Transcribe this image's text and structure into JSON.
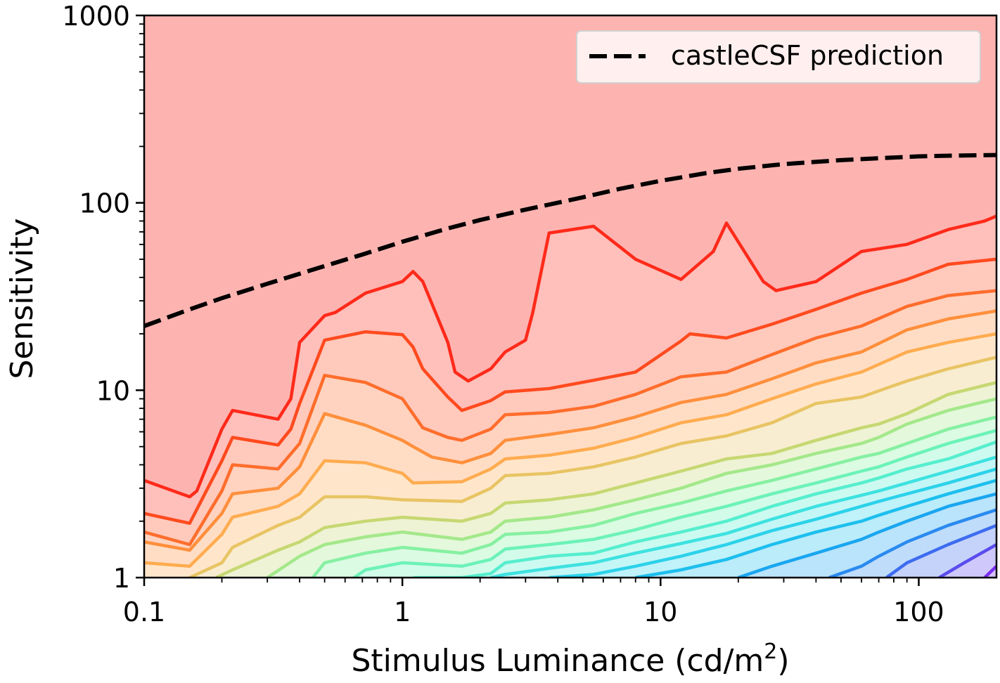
{
  "chart_data": {
    "type": "line",
    "xlabel": "Stimulus Luminance (cd/m",
    "xlabel_sup": "2",
    "xlabel_close": ")",
    "ylabel": "Sensitivity",
    "xscale": "log",
    "yscale": "log",
    "xlim": [
      0.1,
      200
    ],
    "ylim": [
      1,
      1000
    ],
    "x_ticks": [
      {
        "value": 0.1,
        "label": "0.1"
      },
      {
        "value": 1,
        "label": "1"
      },
      {
        "value": 10,
        "label": "10"
      },
      {
        "value": 100,
        "label": "100"
      }
    ],
    "y_ticks": [
      {
        "value": 1,
        "label": "1"
      },
      {
        "value": 10,
        "label": "10"
      },
      {
        "value": 100,
        "label": "100"
      },
      {
        "value": 1000,
        "label": "1000"
      }
    ],
    "legend": {
      "position": "top-right",
      "entries": [
        {
          "name": "castleCSF prediction",
          "style": "dashed",
          "color": "#000000"
        }
      ]
    },
    "prediction": {
      "name": "castleCSF prediction",
      "color": "#000000",
      "x": [
        0.1,
        0.15,
        0.2,
        0.3,
        0.5,
        0.7,
        1,
        1.5,
        2,
        3,
        5,
        7,
        10,
        15,
        20,
        30,
        50,
        70,
        100,
        150,
        200
      ],
      "y": [
        22,
        27,
        31,
        37,
        46,
        53,
        62,
        73,
        81,
        92,
        107,
        119,
        131,
        144,
        152,
        161,
        169,
        173,
        177,
        179,
        180
      ]
    },
    "contours": [
      {
        "color": "#ff2a1a",
        "x": [
          0.1,
          0.15,
          0.16,
          0.2,
          0.22,
          0.33,
          0.37,
          0.4,
          0.5,
          0.55,
          0.72,
          1,
          1.1,
          1.2,
          1.5,
          1.6,
          1.8,
          2.2,
          2.5,
          3,
          3.2,
          3.7,
          5.5,
          8,
          12,
          16,
          18,
          25,
          28,
          40,
          60,
          90,
          130,
          180,
          200
        ],
        "y": [
          3.3,
          2.7,
          2.9,
          6.2,
          7.8,
          7,
          9,
          18,
          25,
          26,
          33,
          38,
          43,
          38,
          18,
          12.5,
          11.2,
          13,
          16,
          18.5,
          26,
          69,
          75,
          50,
          39,
          55,
          78,
          38,
          34,
          38,
          55,
          60,
          72,
          80,
          85
        ]
      },
      {
        "color": "#ff4a1e",
        "x": [
          0.1,
          0.15,
          0.2,
          0.22,
          0.33,
          0.37,
          0.4,
          0.5,
          0.72,
          1,
          1.1,
          1.2,
          1.5,
          1.7,
          2.2,
          2.5,
          3.7,
          5.5,
          8,
          12,
          13,
          18,
          27,
          40,
          60,
          90,
          130,
          200
        ],
        "y": [
          2.2,
          1.95,
          4.2,
          5.6,
          5.1,
          6.2,
          8.5,
          18.5,
          20.5,
          19.8,
          17,
          13,
          9.2,
          7.8,
          8.8,
          9.8,
          10.2,
          11.3,
          12.5,
          18.3,
          20,
          19,
          22.5,
          27,
          33,
          39,
          47,
          50
        ]
      },
      {
        "color": "#ff6d2c",
        "x": [
          0.1,
          0.15,
          0.2,
          0.22,
          0.33,
          0.4,
          0.5,
          0.72,
          1,
          1.2,
          1.5,
          1.7,
          2.2,
          2.5,
          3.7,
          5.5,
          8,
          12,
          18,
          27,
          40,
          60,
          90,
          130,
          200
        ],
        "y": [
          1.75,
          1.5,
          2.9,
          4,
          3.8,
          5.2,
          12,
          11,
          9,
          6.3,
          5.6,
          5.4,
          6.2,
          7.4,
          7.6,
          8.2,
          9.5,
          11.8,
          12.5,
          15.5,
          19,
          22,
          28,
          32,
          34
        ]
      },
      {
        "color": "#ff8f3c",
        "x": [
          0.1,
          0.15,
          0.2,
          0.22,
          0.33,
          0.4,
          0.5,
          0.72,
          1,
          1.1,
          1.3,
          1.7,
          2.2,
          2.5,
          3.7,
          5.5,
          8,
          12,
          18,
          27,
          40,
          60,
          90,
          130,
          200
        ],
        "y": [
          1.55,
          1.4,
          2.2,
          2.8,
          3,
          3.9,
          7.5,
          6.5,
          5.4,
          5,
          4.4,
          4.1,
          4.6,
          5.4,
          5.8,
          6.3,
          7.2,
          8.6,
          9.5,
          11.5,
          14,
          16,
          21,
          24,
          26.5
        ]
      },
      {
        "color": "#ffac50",
        "x": [
          0.1,
          0.15,
          0.2,
          0.22,
          0.33,
          0.4,
          0.5,
          0.72,
          1,
          1.1,
          1.7,
          2.2,
          2.5,
          3.7,
          5.5,
          8,
          12,
          18,
          27,
          40,
          60,
          90,
          130,
          200
        ],
        "y": [
          1.2,
          1.15,
          1.7,
          2.1,
          2.4,
          2.8,
          4.2,
          4.1,
          3.6,
          3.2,
          3.25,
          3.8,
          4.3,
          4.5,
          4.9,
          5.6,
          6.7,
          7.4,
          9,
          10.8,
          12.5,
          16,
          18,
          20
        ]
      },
      {
        "color": "#e8c464",
        "x": [
          0.15,
          0.2,
          0.22,
          0.33,
          0.4,
          0.5,
          0.72,
          1,
          1.7,
          2.2,
          2.5,
          3.7,
          5.5,
          8,
          12,
          18,
          27,
          40,
          60,
          90,
          130,
          200
        ],
        "y": [
          1.0,
          1.2,
          1.45,
          1.9,
          2.1,
          2.7,
          2.7,
          2.6,
          2.55,
          3,
          3.5,
          3.6,
          3.9,
          4.4,
          5.2,
          5.7,
          6.7,
          8.5,
          9.2,
          11.2,
          13,
          15
        ]
      },
      {
        "color": "#c6d872",
        "x": [
          0.19,
          0.22,
          0.33,
          0.4,
          0.5,
          0.72,
          1,
          1.7,
          2.2,
          2.5,
          3.7,
          5.5,
          8,
          12,
          18,
          27,
          40,
          60,
          70,
          90,
          130,
          200
        ],
        "y": [
          1.0,
          1.1,
          1.4,
          1.55,
          1.85,
          2,
          2.1,
          2,
          2.2,
          2.5,
          2.6,
          2.8,
          3.2,
          3.7,
          4.3,
          4.6,
          5.4,
          6.3,
          6.6,
          7.5,
          9.5,
          11
        ]
      },
      {
        "color": "#a4e88a",
        "x": [
          0.3,
          0.4,
          0.5,
          0.72,
          1,
          1.7,
          2.2,
          2.5,
          3.7,
          5.5,
          8,
          12,
          18,
          27,
          40,
          60,
          70,
          90,
          130,
          200
        ],
        "y": [
          1.0,
          1.3,
          1.5,
          1.65,
          1.75,
          1.6,
          1.75,
          2,
          2.1,
          2.3,
          2.6,
          3,
          3.6,
          4,
          4.6,
          5.2,
          5.6,
          6.6,
          7.8,
          9
        ]
      },
      {
        "color": "#86f0a2",
        "x": [
          0.45,
          0.5,
          0.72,
          1,
          1.7,
          2.2,
          2.5,
          3.7,
          5.5,
          8,
          12,
          18,
          27,
          40,
          60,
          70,
          90,
          130,
          200
        ],
        "y": [
          1.0,
          1.2,
          1.35,
          1.45,
          1.35,
          1.5,
          1.7,
          1.75,
          1.9,
          2.2,
          2.5,
          2.9,
          3.3,
          3.8,
          4.4,
          4.6,
          5.2,
          6.2,
          7.2
        ]
      },
      {
        "color": "#6cf2b8",
        "x": [
          0.65,
          0.72,
          1,
          1.7,
          2.2,
          2.5,
          3.7,
          5.5,
          8,
          12,
          18,
          27,
          40,
          60,
          70,
          90,
          130,
          200
        ],
        "y": [
          1.0,
          1.1,
          1.2,
          1.15,
          1.25,
          1.42,
          1.5,
          1.6,
          1.8,
          2.1,
          2.4,
          2.8,
          3.2,
          3.7,
          3.9,
          4.4,
          5.2,
          6.1
        ]
      },
      {
        "color": "#56eece",
        "x": [
          1.1,
          1.7,
          2.2,
          2.5,
          3.7,
          5.5,
          8,
          12,
          18,
          27,
          40,
          60,
          70,
          90,
          130,
          200
        ],
        "y": [
          1.0,
          1.0,
          1.05,
          1.2,
          1.3,
          1.35,
          1.55,
          1.75,
          2,
          2.4,
          2.8,
          3.2,
          3.4,
          3.8,
          4.3,
          5.3
        ]
      },
      {
        "color": "#3ee2e0",
        "x": [
          2.2,
          2.5,
          3.7,
          5.5,
          8,
          12,
          18,
          27,
          40,
          60,
          70,
          90,
          130,
          200
        ],
        "y": [
          1.0,
          1.04,
          1.12,
          1.2,
          1.35,
          1.52,
          1.72,
          2.05,
          2.4,
          2.75,
          2.9,
          3.2,
          3.7,
          4.4
        ]
      },
      {
        "color": "#2cd2ea",
        "x": [
          3.7,
          5.5,
          8,
          12,
          18,
          27,
          40,
          60,
          70,
          90,
          130,
          200
        ],
        "y": [
          1.0,
          1.04,
          1.15,
          1.3,
          1.5,
          1.78,
          2.05,
          2.4,
          2.55,
          2.8,
          3.2,
          3.8
        ]
      },
      {
        "color": "#1dbfee",
        "x": [
          8,
          12,
          18,
          27,
          40,
          60,
          70,
          90,
          130,
          200
        ],
        "y": [
          1.0,
          1.1,
          1.25,
          1.5,
          1.75,
          2,
          2.15,
          2.4,
          2.8,
          3.3
        ]
      },
      {
        "color": "#1aa6f0",
        "x": [
          20,
          27,
          40,
          60,
          70,
          90,
          130,
          200
        ],
        "y": [
          1.0,
          1.15,
          1.35,
          1.6,
          1.75,
          2,
          2.4,
          2.8
        ]
      },
      {
        "color": "#2a8af0",
        "x": [
          45,
          60,
          70,
          90,
          130,
          200
        ],
        "y": [
          1.0,
          1.15,
          1.3,
          1.55,
          1.9,
          2.3
        ]
      },
      {
        "color": "#3d6cf0",
        "x": [
          75,
          90,
          130,
          200
        ],
        "y": [
          1.0,
          1.2,
          1.5,
          1.9
        ]
      },
      {
        "color": "#5a4cee",
        "x": [
          120,
          150,
          200
        ],
        "y": [
          1.0,
          1.2,
          1.5
        ]
      },
      {
        "color": "#7a2ff0",
        "x": [
          180,
          200
        ],
        "y": [
          1.0,
          1.15
        ]
      }
    ]
  }
}
